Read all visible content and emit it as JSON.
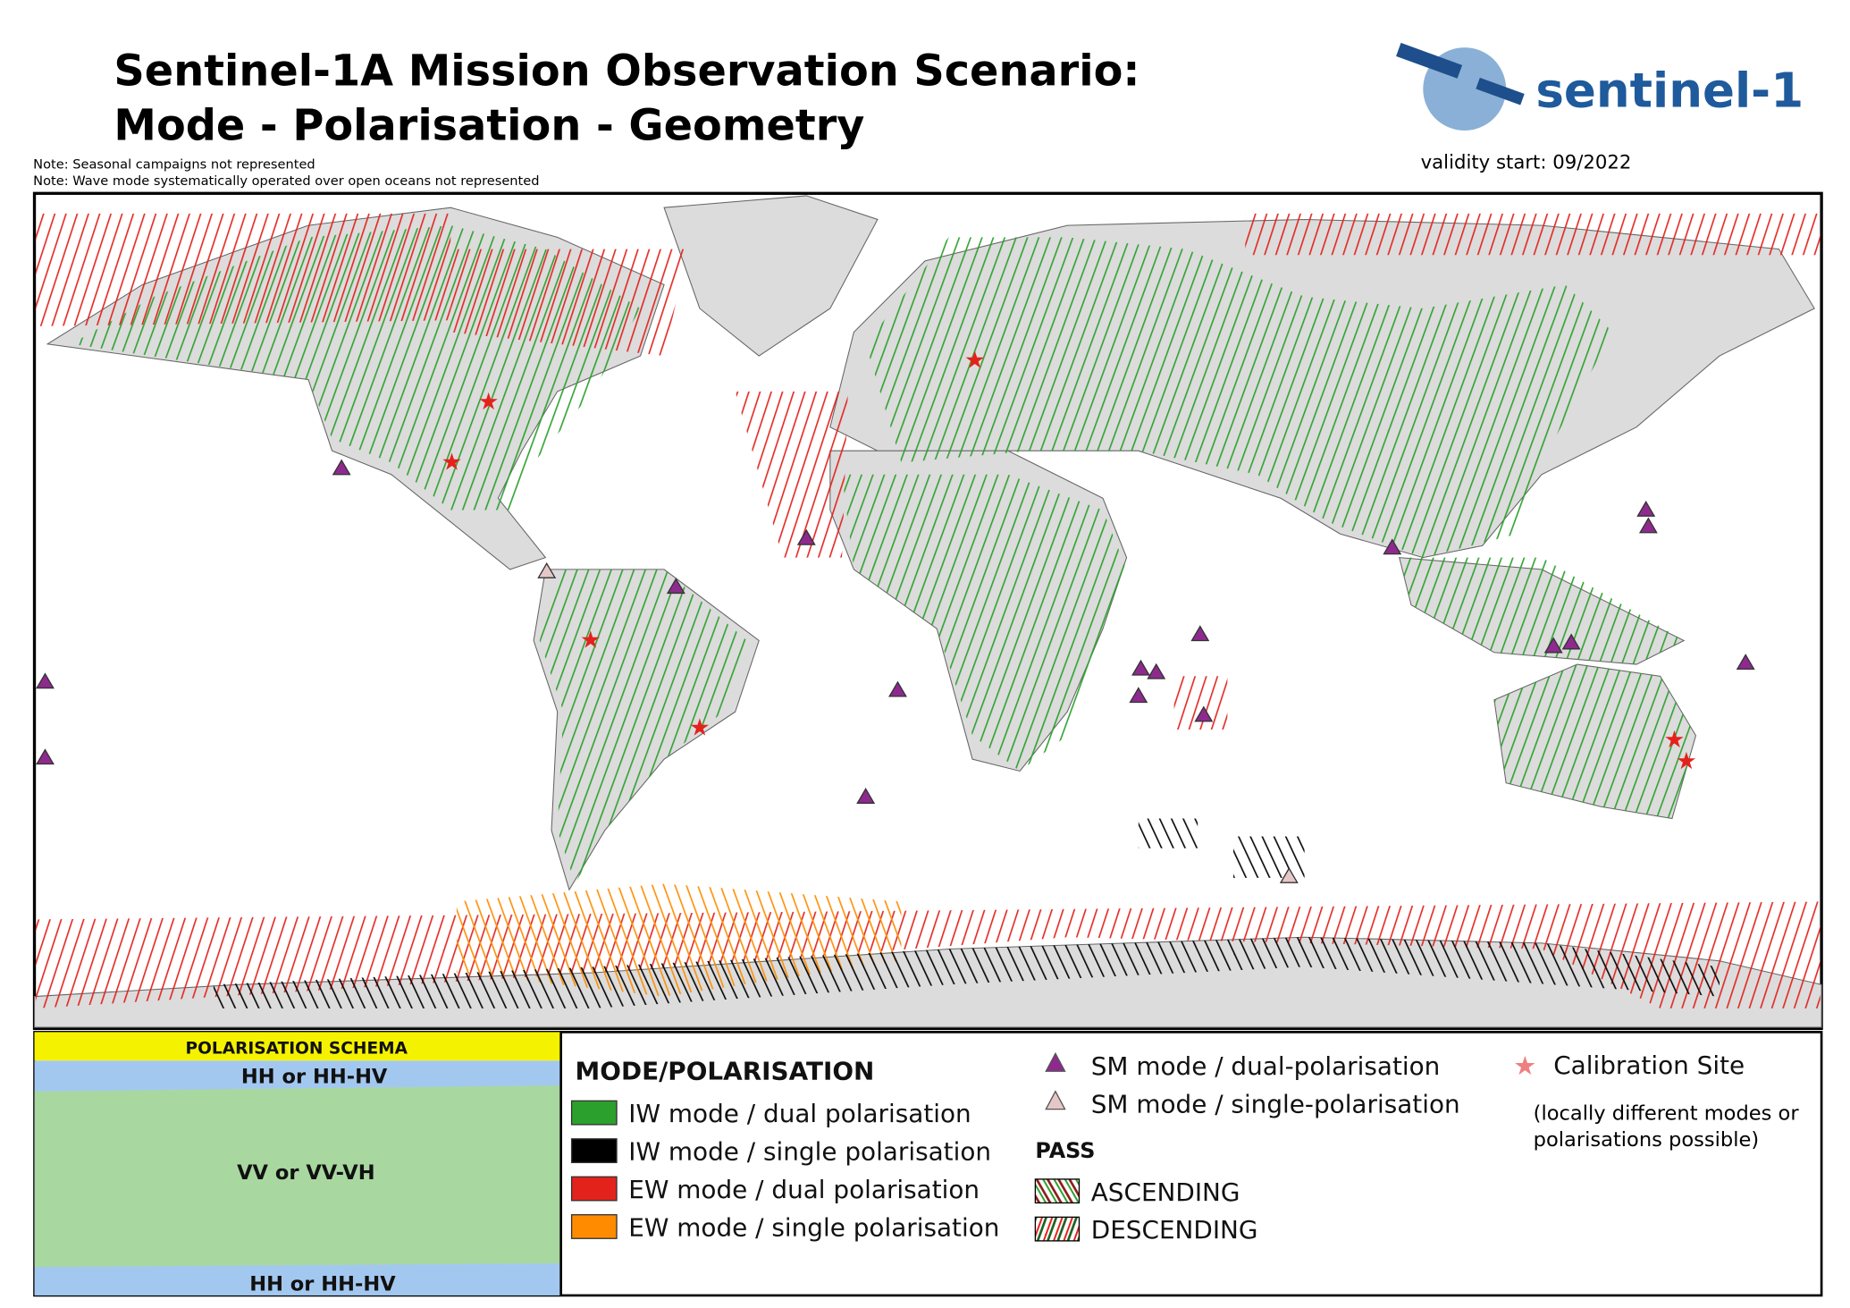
{
  "header": {
    "title_lines": [
      "Sentinel-1A Mission Observation Scenario:",
      "Mode - Polarisation - Geometry"
    ],
    "notes": [
      "Note: Seasonal campaigns not represented",
      "Note: Wave mode systematically operated over open oceans not represented"
    ],
    "validity": "validity start:  09/2022",
    "logo": "sentinel-1"
  },
  "polarisation_schema": {
    "title": "POLARISATION SCHEMA",
    "labels": [
      "HH or HH-HV",
      "VV or VV-VH",
      "HH or HH-HV"
    ]
  },
  "mode_legend": {
    "title": "MODE/POLARISATION",
    "items": [
      {
        "label": "IW mode / dual polarisation",
        "color": "#2ca02c"
      },
      {
        "label": "IW mode / single polarisation",
        "color": "#000000"
      },
      {
        "label": "EW mode / dual polarisation",
        "color": "#e3221c"
      },
      {
        "label": "EW mode / single polarisation",
        "color": "#ff8c00"
      }
    ]
  },
  "sm_legend": {
    "items": [
      {
        "label": "SM mode / dual-polarisation",
        "color": "#8e2a8e"
      },
      {
        "label": "SM mode / single-polarisation",
        "color": "#e6c7c7"
      }
    ]
  },
  "pass_legend": {
    "title": "PASS",
    "items": [
      "ASCENDING",
      "DESCENDING"
    ]
  },
  "calibration_legend": {
    "label": "Calibration Site",
    "note_lines": [
      "(locally different modes or",
      "polarisations possible)"
    ]
  }
}
